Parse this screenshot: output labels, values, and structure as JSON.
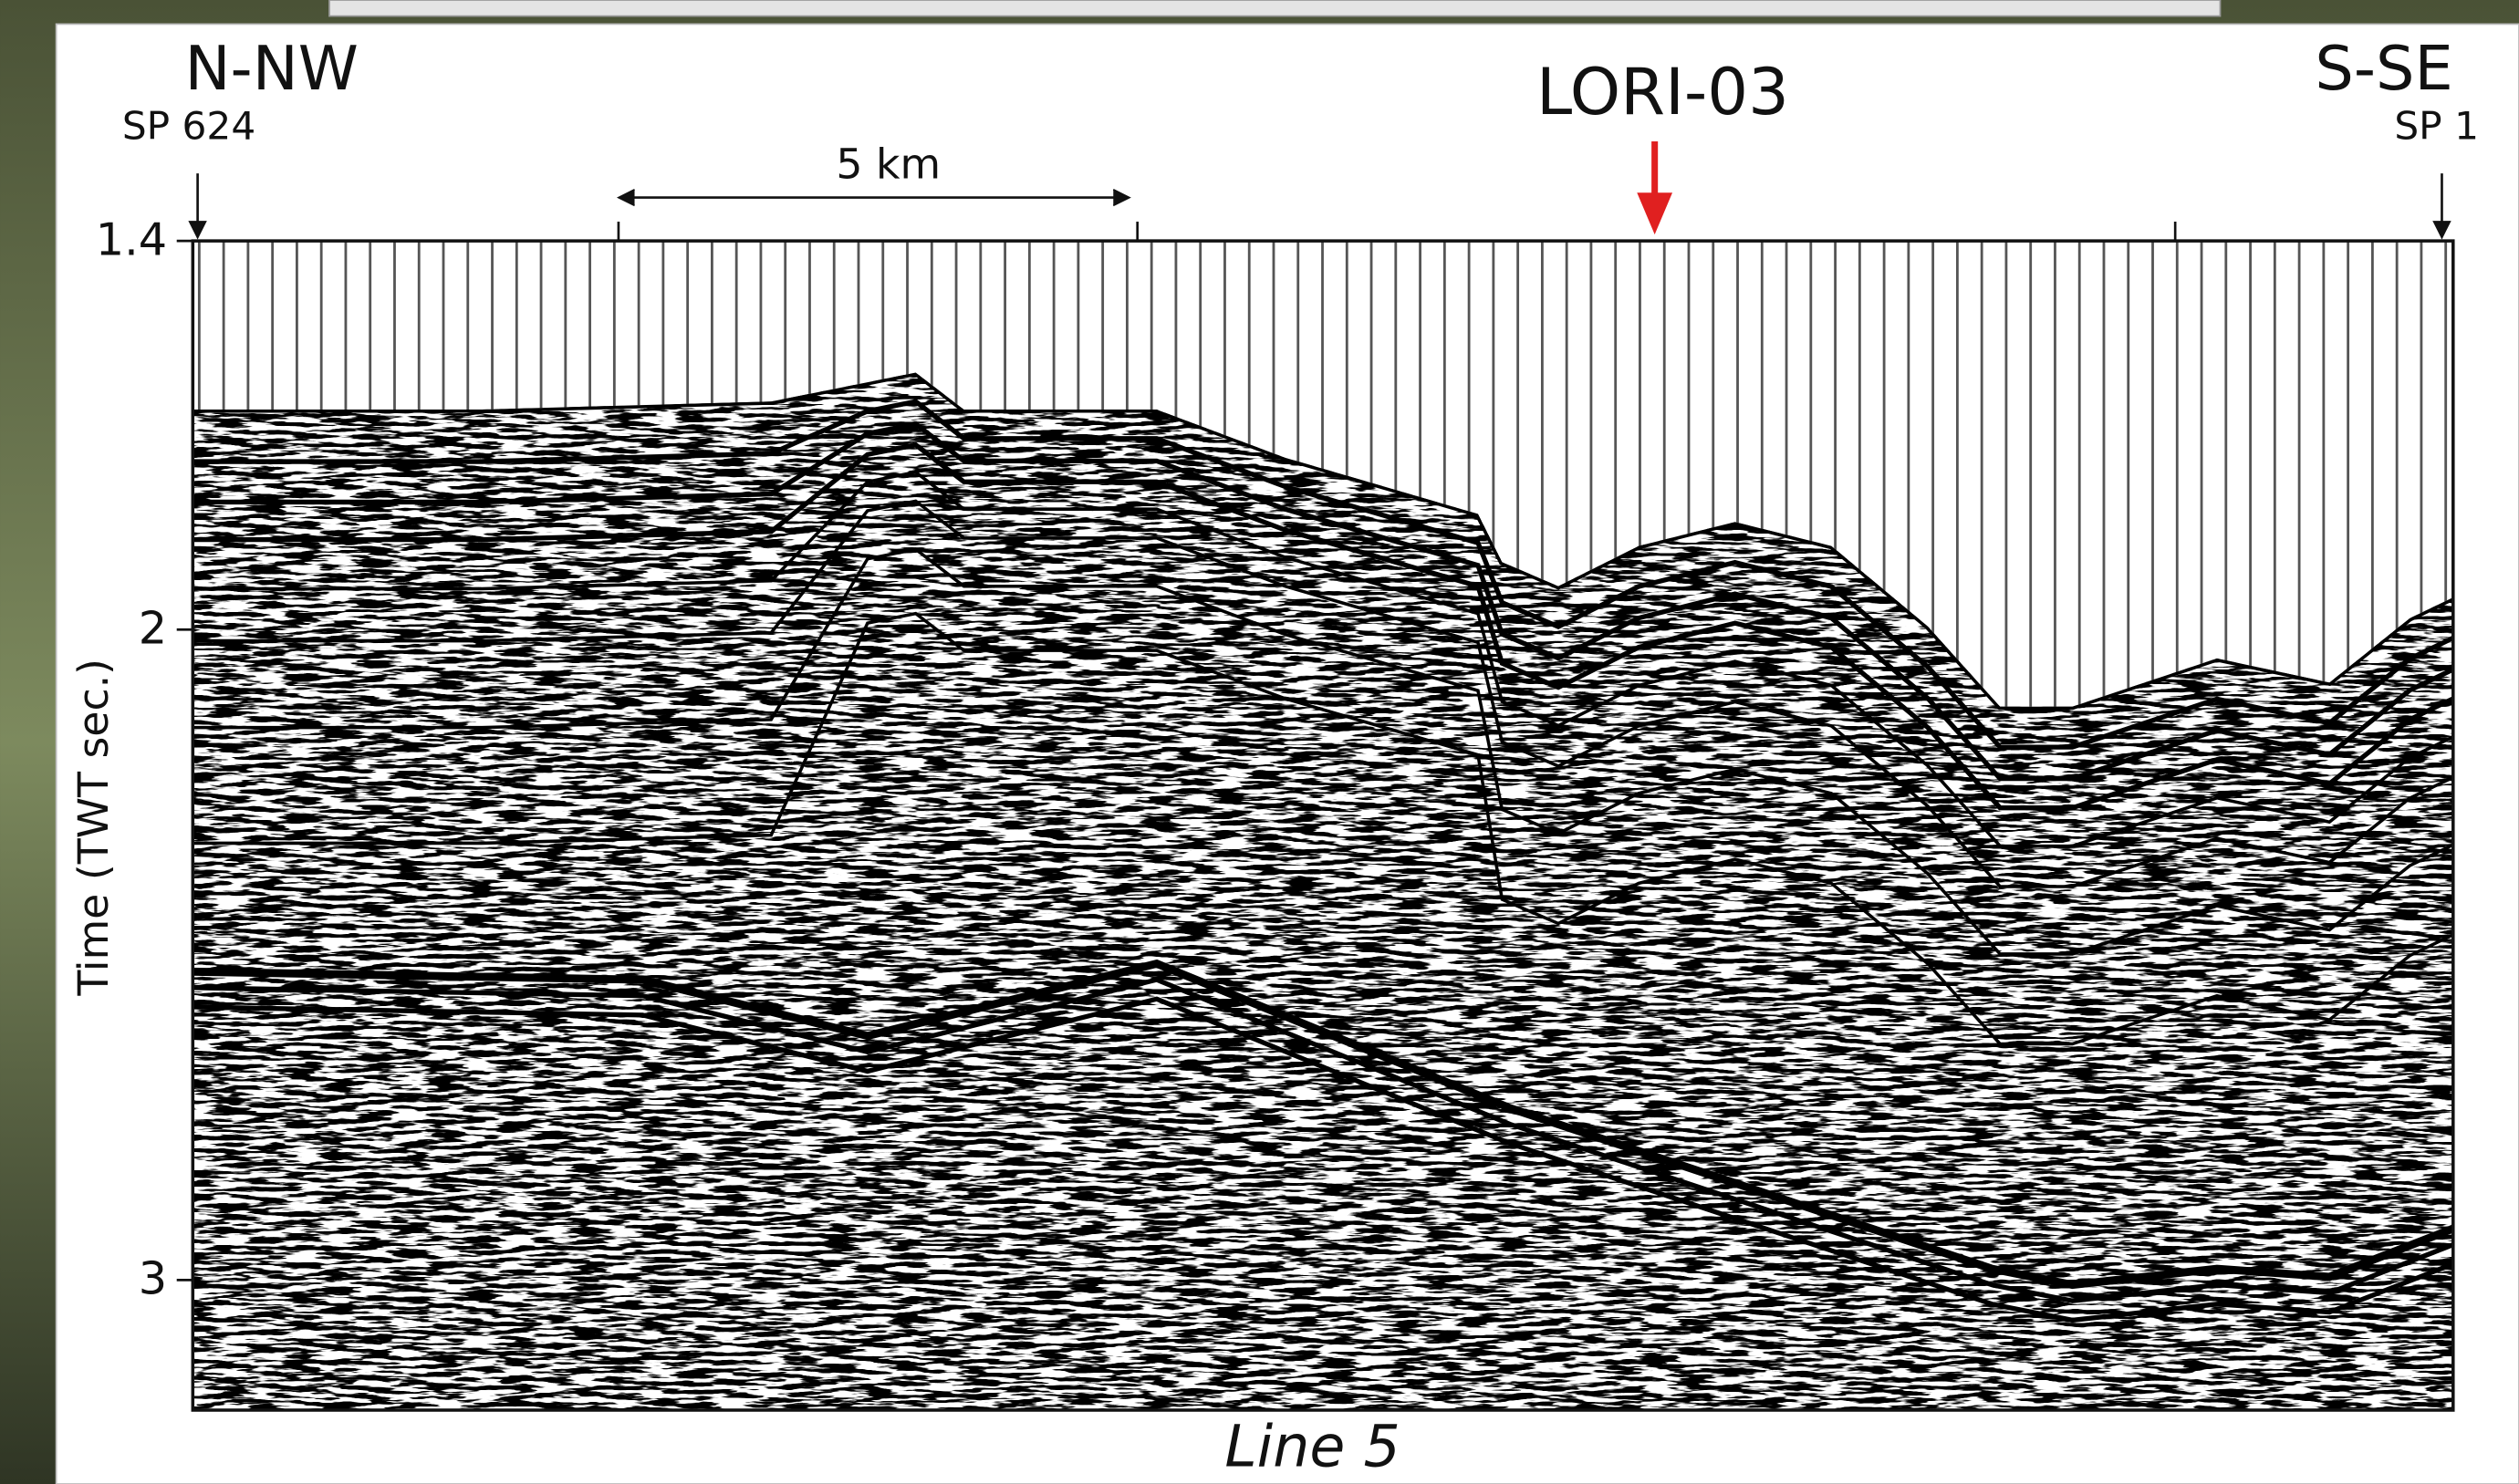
{
  "header": {
    "left_direction": "N-NW",
    "left_sp": "SP 624",
    "right_direction": "S-SE",
    "right_sp": "SP 1",
    "well": "LORI-03",
    "scale_bar": "5 km"
  },
  "axis": {
    "title": "Time (TWT sec.)",
    "ticks": [
      "1.4",
      "2",
      "3"
    ]
  },
  "caption": "Line 5"
}
